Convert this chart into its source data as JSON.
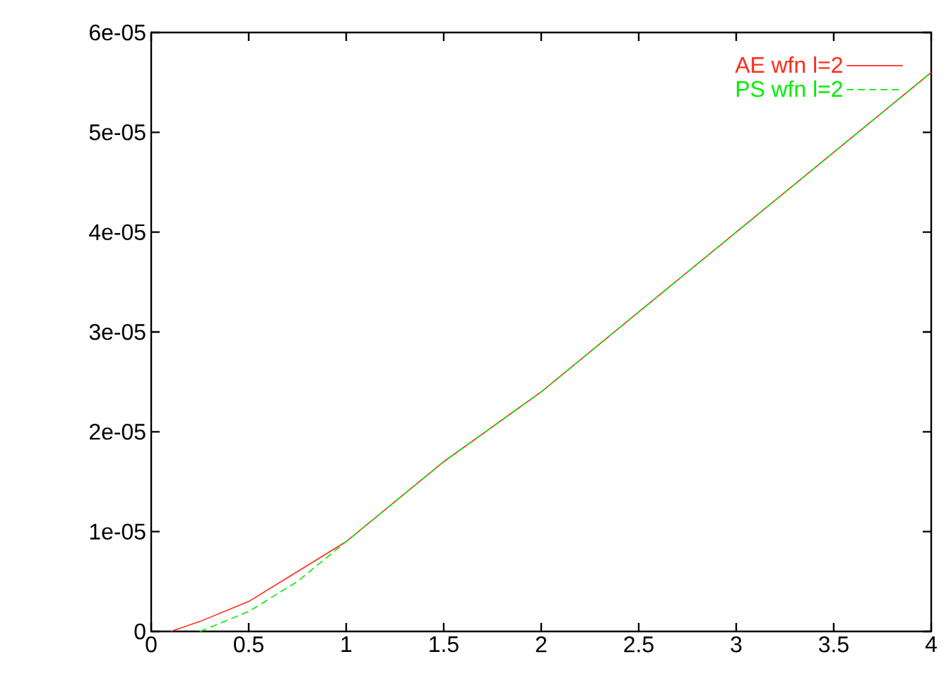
{
  "chart_data": {
    "type": "line",
    "xlim": [
      0,
      4
    ],
    "ylim": [
      0,
      6e-05
    ],
    "xticks": [
      0,
      0.5,
      1,
      1.5,
      2,
      2.5,
      3,
      3.5,
      4
    ],
    "yticks": [
      {
        "value": 0,
        "label": "0"
      },
      {
        "value": 1e-05,
        "label": "1e-05"
      },
      {
        "value": 2e-05,
        "label": "2e-05"
      },
      {
        "value": 3e-05,
        "label": "3e-05"
      },
      {
        "value": 4e-05,
        "label": "4e-05"
      },
      {
        "value": 5e-05,
        "label": "5e-05"
      },
      {
        "value": 6e-05,
        "label": "6e-05"
      }
    ],
    "series": [
      {
        "name": "AE wfn l=2",
        "color": "#ff2a1a",
        "line_style": "solid",
        "x": [
          0.1,
          0.25,
          0.5,
          0.75,
          1,
          1.25,
          1.5,
          2,
          2.5,
          3,
          3.5,
          4
        ],
        "values": [
          0,
          1e-06,
          3e-06,
          6e-06,
          9e-06,
          1.3e-05,
          1.7e-05,
          2.4e-05,
          3.2e-05,
          4e-05,
          4.8e-05,
          5.6e-05
        ]
      },
      {
        "name": "PS wfn l=2",
        "color": "#00ee00",
        "line_style": "dashed",
        "x": [
          0.25,
          0.5,
          0.75,
          1,
          1.25,
          1.5,
          2,
          2.5,
          3,
          3.5,
          4
        ],
        "values": [
          0,
          2e-06,
          5e-06,
          9e-06,
          1.3e-05,
          1.7e-05,
          2.4e-05,
          3.2e-05,
          4e-05,
          4.8e-05,
          5.6e-05
        ]
      }
    ],
    "legend": "top right",
    "grid": false,
    "marker": "none"
  }
}
